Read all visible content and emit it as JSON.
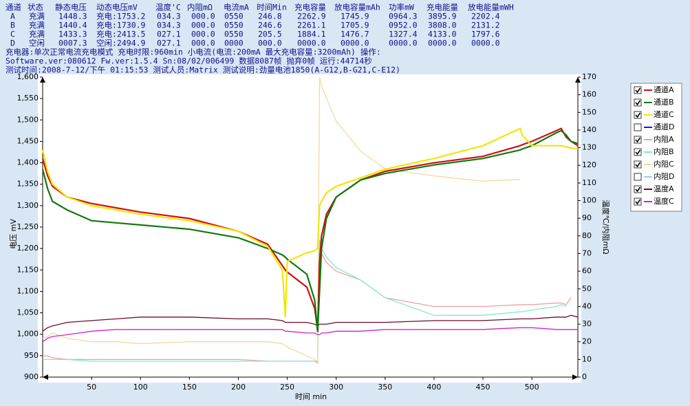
{
  "header": {
    "columns": [
      "通道",
      "状态",
      "静态电压",
      "动态电压mV",
      "温度'C",
      "内阻mΩ",
      "电流mA",
      "时间Min",
      "充电容量",
      "放电容量mAh",
      "功率mW",
      "充电能量",
      "放电能量mWH"
    ],
    "rows": [
      [
        "A",
        "充满",
        "1448.3",
        "充电:1753.2",
        "034.3",
        "000.0",
        "0550",
        "246.8",
        "2262.9",
        "1745.9",
        "0964.3",
        "3895.9",
        "2202.4"
      ],
      [
        "B",
        "充满",
        "1440.4",
        "充电:1730.9",
        "034.3",
        "000.0",
        "0550",
        "246.6",
        "2261.1",
        "1705.9",
        "0952.0",
        "3808.0",
        "2131.2"
      ],
      [
        "C",
        "充满",
        "1433.3",
        "充电:2413.5",
        "027.1",
        "000.0",
        "0550",
        "205.5",
        "1884.1",
        "1476.7",
        "1327.4",
        "4133.0",
        "1797.6"
      ],
      [
        "D",
        "空闲",
        "0007.3",
        "空闲:2494.9",
        "027.1",
        "000.0",
        "0000",
        "000.0",
        "0000.0",
        "0000.0",
        "0000.0",
        "0000.0",
        "0000.0"
      ]
    ]
  },
  "info": [
    "充电器:单次正常电流充电模式  充电时限:960min  小电流(电流:200mA  最大充电容量:3200mAh)  操作:",
    "Software.ver:080612  Fw.ver:1.5.4  Sn:08/02/006499  数据8087帧  抛弃0帧  运行:44714秒",
    "测试时间:2008-7-12/下午 01:15:53  测试人员:Matrix  测试说明:劲量电池1850(A-G12,B-G21,C-E12)"
  ],
  "chart_data": {
    "type": "line",
    "x_label": "时间 min",
    "y_label": "电压 mV",
    "y2_label": "温度℃/内阻mΩ",
    "xlim": [
      0,
      547
    ],
    "xticks": [
      50,
      100,
      150,
      200,
      250,
      300,
      350,
      400,
      450,
      500
    ],
    "ylim": [
      900,
      1600
    ],
    "yticks": [
      900,
      950,
      {
        "value": 1000,
        "label": "1,000"
      },
      {
        "value": 1050,
        "label": "1,050"
      },
      {
        "value": 1100,
        "label": "1,100"
      },
      {
        "value": 1150,
        "label": "1,150"
      },
      {
        "value": 1200,
        "label": "1,200"
      },
      {
        "value": 1250,
        "label": "1,250"
      },
      {
        "value": 1300,
        "label": "1,300"
      },
      {
        "value": 1350,
        "label": "1,350"
      },
      {
        "value": 1400,
        "label": "1,400"
      },
      {
        "value": 1450,
        "label": "1,450"
      },
      {
        "value": 1500,
        "label": "1,500"
      },
      {
        "value": 1550,
        "label": "1,550"
      },
      {
        "value": 1600,
        "label": "1,600"
      }
    ],
    "y2lim": [
      0,
      170
    ],
    "y2ticks": [
      0,
      10,
      20,
      30,
      40,
      50,
      60,
      70,
      80,
      90,
      100,
      110,
      120,
      130,
      140,
      150,
      160,
      170
    ],
    "x": [
      0,
      5,
      10,
      25,
      50,
      75,
      100,
      150,
      200,
      230,
      245,
      248,
      250,
      270,
      278,
      281,
      283,
      285,
      290,
      300,
      325,
      350,
      400,
      450,
      488,
      490,
      500,
      525,
      530,
      535,
      540,
      547
    ],
    "series": [
      {
        "name": "通道A",
        "color": "#d01010",
        "checked": true,
        "values": [
          1410,
          1370,
          1345,
          1320,
          1305,
          1295,
          1285,
          1270,
          1240,
          1210,
          1160,
          1150,
          1145,
          1110,
          1060,
          1010,
          1170,
          1230,
          1280,
          1320,
          1360,
          1380,
          1400,
          1415,
          1440,
          1442,
          1450,
          1475,
          1480,
          1460,
          1450,
          1440
        ]
      },
      {
        "name": "通道B",
        "color": "#117711",
        "checked": true,
        "values": [
          1385,
          1340,
          1310,
          1290,
          1265,
          1260,
          1255,
          1245,
          1225,
          1200,
          1185,
          1180,
          1175,
          1140,
          1080,
          1005,
          1100,
          1200,
          1270,
          1320,
          1360,
          1375,
          1395,
          1410,
          1430,
          1432,
          1440,
          1470,
          1475,
          1465,
          1450,
          1445
        ]
      },
      {
        "name": "通道C",
        "color": "#f2e600",
        "checked": true,
        "values": [
          1430,
          1380,
          1350,
          1320,
          1300,
          1290,
          1280,
          1265,
          1240,
          1205,
          1150,
          1040,
          1170,
          1190,
          1195,
          1200,
          1300,
          1310,
          1330,
          1345,
          1365,
          1385,
          1410,
          1440,
          1480,
          1465,
          1440,
          1440,
          1440,
          1437,
          1435,
          1432
        ]
      },
      {
        "name": "通道D",
        "color": "#1020d0",
        "checked": false
      },
      {
        "name": "内阻A",
        "color": "#f0a0a0",
        "checked": true,
        "axis": "y2",
        "values": [
          12,
          12,
          11,
          10,
          10,
          10,
          10,
          10,
          10,
          9,
          9,
          9,
          9,
          9,
          9,
          8,
          70,
          70,
          65,
          60,
          55,
          45,
          40,
          40,
          41,
          41,
          41,
          42,
          42,
          41,
          45,
          null
        ]
      },
      {
        "name": "内阻B",
        "color": "#80e8c8",
        "checked": true,
        "axis": "y2",
        "values": [
          10,
          10,
          10,
          10,
          9,
          9,
          9,
          9,
          9,
          9,
          9,
          9,
          9,
          9,
          9,
          9,
          78,
          73,
          68,
          62,
          55,
          45,
          35,
          35,
          37,
          37,
          38,
          40,
          41,
          40,
          null,
          null
        ]
      },
      {
        "name": "内阻C",
        "color": "#f5d8a0",
        "checked": true,
        "axis": "y2",
        "values": [
          22,
          23,
          25,
          22,
          20,
          20,
          19,
          20,
          20,
          20,
          19,
          18,
          17,
          12,
          10,
          9,
          170,
          165,
          158,
          145,
          128,
          118,
          114,
          111,
          112,
          null,
          null,
          null,
          null,
          null,
          null,
          null
        ]
      },
      {
        "name": "内阻D",
        "color": "#a0c8f0",
        "checked": false,
        "axis": "y2"
      },
      {
        "name": "温度A",
        "color": "#6a0a2a",
        "checked": true,
        "axis": "y2",
        "values": [
          26,
          28,
          29,
          31,
          32,
          33,
          34,
          34,
          33,
          33,
          32,
          31,
          31,
          31,
          30,
          29,
          30,
          30,
          30,
          31,
          31,
          31,
          32,
          32,
          33,
          33,
          33,
          34,
          34,
          34,
          35,
          34
        ]
      },
      {
        "name": "温度C",
        "color": "#d020d0",
        "checked": true,
        "axis": "y2",
        "values": [
          20,
          22,
          23,
          24,
          26,
          27,
          27,
          27,
          27,
          27,
          27,
          26,
          26,
          25,
          25,
          24,
          24,
          25,
          25,
          26,
          26,
          27,
          27,
          27,
          28,
          28,
          28,
          27,
          27,
          27,
          27,
          27
        ]
      }
    ]
  }
}
